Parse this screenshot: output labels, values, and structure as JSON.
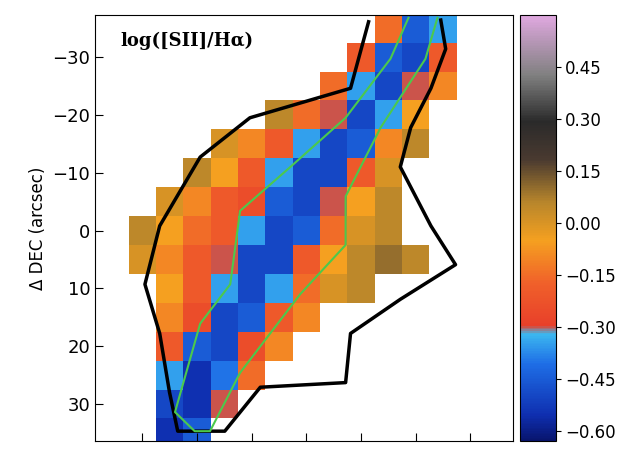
{
  "chart_data": {
    "type": "heatmap",
    "title": "log([SII]/Hα)",
    "y_label": "Δ DEC (arcsec)",
    "tick_labels": "y",
    "xlim": [
      -38.6,
      37.8
    ],
    "xticks": [
      -30,
      -20,
      -10,
      0,
      10,
      20,
      30
    ],
    "ylim": [
      36.4,
      -37.3
    ],
    "yticks": [
      {
        "value": -30,
        "label": "−30"
      },
      {
        "value": -20,
        "label": "−20"
      },
      {
        "value": -10,
        "label": "−10"
      },
      0,
      10,
      20,
      30
    ],
    "x": [
      -35,
      -30,
      -25,
      -20,
      -15,
      -10,
      -5,
      0,
      5,
      10,
      15,
      20,
      25,
      30,
      35
    ],
    "y": [
      -35,
      -30,
      -25,
      -20,
      -15,
      -10,
      -5,
      0,
      5,
      10,
      15,
      20,
      25,
      30,
      35
    ],
    "cells": [
      [
        null,
        null,
        null,
        null,
        null,
        null,
        null,
        null,
        null,
        null,
        -0.15,
        -0.45,
        -0.35,
        null,
        null
      ],
      [
        null,
        null,
        null,
        null,
        null,
        null,
        null,
        null,
        null,
        -0.2,
        -0.45,
        -0.5,
        -0.2,
        null,
        null
      ],
      [
        null,
        null,
        null,
        null,
        null,
        null,
        null,
        null,
        -0.15,
        -0.35,
        -0.5,
        -0.3,
        -0.1,
        null,
        null
      ],
      [
        null,
        null,
        null,
        null,
        null,
        null,
        0.05,
        -0.15,
        -0.3,
        -0.5,
        -0.35,
        -0.05,
        null,
        null,
        null
      ],
      [
        null,
        null,
        null,
        null,
        0.0,
        -0.1,
        -0.2,
        -0.35,
        -0.5,
        -0.45,
        -0.1,
        0.05,
        null,
        null,
        null
      ],
      [
        null,
        null,
        null,
        0.05,
        -0.05,
        -0.2,
        -0.35,
        -0.5,
        -0.5,
        -0.2,
        0.0,
        null,
        null,
        null,
        null
      ],
      [
        null,
        null,
        0.0,
        -0.1,
        -0.2,
        -0.25,
        -0.45,
        -0.5,
        -0.3,
        -0.05,
        0.05,
        null,
        null,
        null,
        null
      ],
      [
        null,
        0.05,
        -0.05,
        -0.15,
        -0.2,
        -0.35,
        -0.5,
        -0.45,
        -0.15,
        0.0,
        0.05,
        null,
        null,
        null,
        null
      ],
      [
        null,
        0.0,
        -0.1,
        -0.2,
        -0.3,
        -0.5,
        -0.5,
        -0.2,
        -0.05,
        0.05,
        0.1,
        0.05,
        null,
        null,
        null
      ],
      [
        null,
        null,
        -0.05,
        -0.2,
        -0.35,
        -0.5,
        -0.35,
        -0.15,
        0.0,
        0.05,
        null,
        null,
        null,
        null,
        null
      ],
      [
        null,
        null,
        -0.1,
        -0.25,
        -0.5,
        -0.45,
        -0.2,
        -0.1,
        null,
        null,
        null,
        null,
        null,
        null,
        null
      ],
      [
        null,
        null,
        -0.2,
        -0.45,
        -0.5,
        -0.25,
        -0.1,
        null,
        null,
        null,
        null,
        null,
        null,
        null,
        null
      ],
      [
        null,
        null,
        -0.35,
        -0.55,
        -0.4,
        -0.15,
        null,
        null,
        null,
        null,
        null,
        null,
        null,
        null,
        null
      ],
      [
        null,
        null,
        -0.5,
        -0.55,
        -0.3,
        null,
        null,
        null,
        null,
        null,
        null,
        null,
        null,
        null,
        null
      ],
      [
        null,
        null,
        -0.55,
        -0.45,
        null,
        null,
        null,
        null,
        null,
        null,
        null,
        null,
        null,
        null,
        null
      ]
    ],
    "colorbar_range": [
      -0.63,
      0.6
    ],
    "colorbar_ticks": [
      {
        "value": -0.6,
        "label": "−0.60"
      },
      {
        "value": -0.45,
        "label": "−0.45"
      },
      {
        "value": -0.3,
        "label": "−0.30"
      },
      {
        "value": -0.15,
        "label": "−0.15"
      },
      {
        "value": 0.0,
        "label": "0.00"
      },
      {
        "value": 0.15,
        "label": "0.15"
      },
      {
        "value": 0.3,
        "label": "0.30"
      },
      {
        "value": 0.45,
        "label": "0.45"
      }
    ],
    "contours": [
      {
        "color": "#000000",
        "x": [
          11.4,
          8.1,
          -10.3,
          -19.4,
          -26.8,
          -29.5,
          -26.8,
          -25.0,
          -23.5,
          -14.9,
          -8.4,
          7.2,
          8.1,
          17.2,
          27.3,
          22.8,
          17.2,
          19.1,
          22.8,
          25.5,
          24.6
        ],
        "y": [
          -36.1,
          -24.6,
          -19.5,
          -12.7,
          -0.8,
          9.3,
          17.8,
          28.0,
          34.7,
          34.7,
          27.1,
          26.3,
          17.8,
          11.9,
          5.9,
          -0.8,
          -11.0,
          -17.8,
          -24.6,
          -31.4,
          -36.4
        ]
      },
      {
        "color": "#4cc94c",
        "x": [
          18.7,
          15.4,
          7.2,
          -2.9,
          -12.1,
          -13.9,
          -19.4,
          -24.0,
          -20.4,
          -17.6,
          -12.1,
          -1.1,
          7.2,
          7.2,
          13.6,
          21.8,
          24.0
        ],
        "y": [
          -36.8,
          -29.7,
          -19.5,
          -11.0,
          -3.4,
          9.3,
          16.1,
          31.4,
          34.7,
          34.7,
          24.6,
          11.0,
          2.5,
          -5.9,
          -17.8,
          -29.7,
          -36.8
        ]
      }
    ]
  }
}
